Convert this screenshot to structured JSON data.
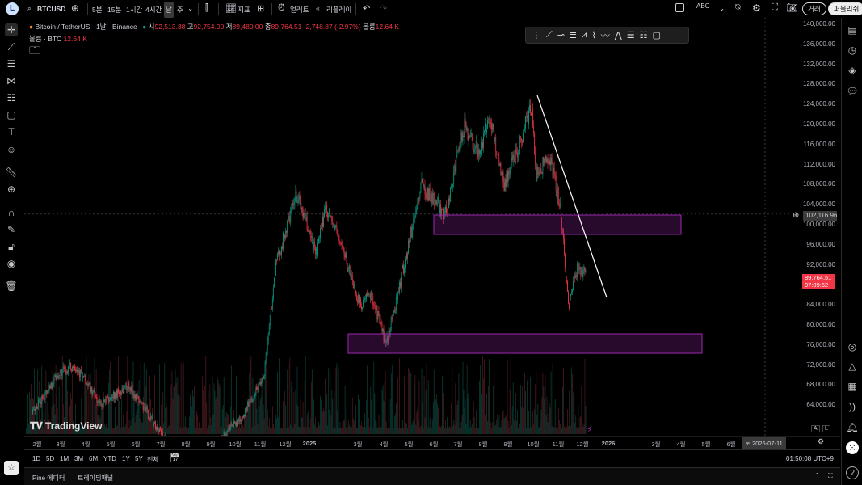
{
  "toolbar": {
    "avatar": "L",
    "symbol": "BTCUSD",
    "intervals": [
      "5분",
      "15분",
      "1시간",
      "4시간",
      "날",
      "주"
    ],
    "active_interval": "날",
    "indicators": "지표",
    "alerts": "얼러트",
    "replay": "리플레이",
    "abc_label": "ABC",
    "trade": "거래",
    "publish": "퍼블리쉬"
  },
  "legend": {
    "title": "Bitcoin / TetherUS · 1날 · Binance",
    "open_label": "시",
    "open": "92,513.38",
    "high_label": "고",
    "high": "92,754.00",
    "low_label": "저",
    "low": "89,480.00",
    "close_label": "종",
    "close": "89,764.51",
    "change": "-2,748.87 (-2.97%)",
    "volume_label": "볼륨",
    "volume": "12.64 K",
    "vol_line_label": "볼륨 · BTC",
    "vol_line_value": "12.64 K"
  },
  "price_axis": {
    "labels": [
      "140,000.00",
      "136,000.00",
      "132,000.00",
      "128,000.00",
      "124,000.00",
      "120,000.00",
      "116,000.00",
      "112,000.00",
      "108,000.00",
      "104,000.00",
      "100,000.00",
      "96,000.00",
      "92,000.00",
      "84,000.00",
      "80,000.00",
      "76,000.00",
      "72,000.00",
      "68,000.00",
      "64,000.00"
    ],
    "crosshair_price": "102,116.96",
    "last_price": "89,764.51",
    "countdown": "07:09:52"
  },
  "time_axis": {
    "labels": [
      "2월",
      "3월",
      "4월",
      "5월",
      "6월",
      "7월",
      "8월",
      "9월",
      "10월",
      "11월",
      "12월",
      "2025",
      "3월",
      "4월",
      "5월",
      "6월",
      "7월",
      "8월",
      "9월",
      "10월",
      "11월",
      "12월",
      "2026",
      "3월",
      "4월",
      "5월",
      "6월"
    ],
    "crosshair_date": "토 2026-07-11"
  },
  "watermark": "TradingView",
  "ranges": [
    "1D",
    "5D",
    "1M",
    "3M",
    "6M",
    "YTD",
    "1Y",
    "5Y",
    "전체"
  ],
  "clock": "01:50:08 UTC+9",
  "panel_tabs": [
    "Pine 에디터",
    "트레이딩패널"
  ],
  "scale_buttons": [
    "A",
    "L"
  ],
  "colors": {
    "up": "#089981",
    "down": "#f23645",
    "zone": "#9c27b0",
    "trendline": "#ffffff"
  },
  "price_path": [
    [
      "2024-01-20",
      62000
    ],
    [
      "2024-02-20",
      70000
    ],
    [
      "2024-03-14",
      72000
    ],
    [
      "2024-04-15",
      64000
    ],
    [
      "2024-05-20",
      68000
    ],
    [
      "2024-07-05",
      57000
    ],
    [
      "2024-08-05",
      54000
    ],
    [
      "2024-09-05",
      56000
    ],
    [
      "2024-10-10",
      62000
    ],
    [
      "2024-11-05",
      70000
    ],
    [
      "2024-11-20",
      92000
    ],
    [
      "2024-12-16",
      106000
    ],
    [
      "2025-01-10",
      94000
    ],
    [
      "2025-01-21",
      104000
    ],
    [
      "2025-02-10",
      96000
    ],
    [
      "2025-03-05",
      84000
    ],
    [
      "2025-03-20",
      86000
    ],
    [
      "2025-04-07",
      76000
    ],
    [
      "2025-05-05",
      96000
    ],
    [
      "2025-05-21",
      108000
    ],
    [
      "2025-06-20",
      102000
    ],
    [
      "2025-07-14",
      120000
    ],
    [
      "2025-08-01",
      114000
    ],
    [
      "2025-08-14",
      122000
    ],
    [
      "2025-09-01",
      108000
    ],
    [
      "2025-09-20",
      116000
    ],
    [
      "2025-10-06",
      124000
    ],
    [
      "2025-10-11",
      110000
    ],
    [
      "2025-10-28",
      114000
    ],
    [
      "2025-11-10",
      104000
    ],
    [
      "2025-11-21",
      84000
    ],
    [
      "2025-12-03",
      92000
    ],
    [
      "2025-12-13",
      89764
    ]
  ]
}
